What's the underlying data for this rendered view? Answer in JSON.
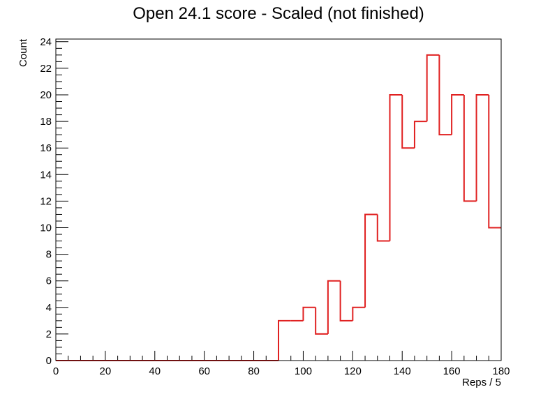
{
  "chart_data": {
    "type": "bar",
    "title": "Open 24.1 score - Scaled (not finished)",
    "xlabel": "Reps / 5",
    "ylabel": "Count",
    "xlim": [
      0,
      180
    ],
    "ylim": [
      0,
      24.2
    ],
    "grid": false,
    "legend": "none",
    "line_color": "#e02020",
    "bin_width": 5,
    "bin_edges": [
      0,
      5,
      10,
      15,
      20,
      25,
      30,
      35,
      40,
      45,
      50,
      55,
      60,
      65,
      70,
      75,
      80,
      85,
      90,
      95,
      100,
      105,
      110,
      115,
      120,
      125,
      130,
      135,
      140,
      145,
      150,
      155,
      160,
      165,
      170,
      175,
      180
    ],
    "values": [
      0,
      0,
      0,
      0,
      0,
      0,
      0,
      0,
      0,
      0,
      0,
      0,
      0,
      0,
      0,
      0,
      0,
      0,
      3,
      3,
      4,
      2,
      6,
      3,
      4,
      11,
      9,
      20,
      16,
      18,
      23,
      17,
      20,
      12,
      20,
      10
    ],
    "x_ticks": [
      "0",
      "20",
      "40",
      "60",
      "80",
      "100",
      "120",
      "140",
      "160",
      "180"
    ],
    "y_ticks": [
      "0",
      "2",
      "4",
      "6",
      "8",
      "10",
      "12",
      "14",
      "16",
      "18",
      "20",
      "22",
      "24"
    ]
  }
}
